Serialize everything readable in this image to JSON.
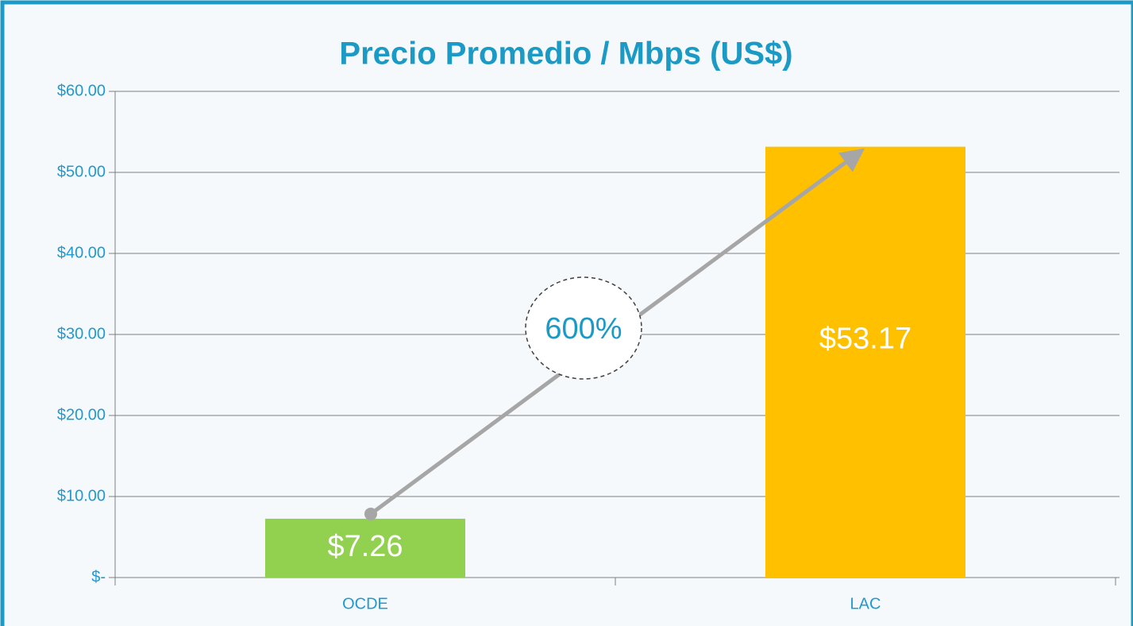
{
  "chart_data": {
    "type": "bar",
    "title": "Precio Promedio / Mbps (US$)",
    "categories": [
      "OCDE",
      "LAC"
    ],
    "values": [
      7.26,
      53.17
    ],
    "value_labels": [
      "$7.26",
      "$53.17"
    ],
    "colors": [
      "#92d050",
      "#ffc000"
    ],
    "ylim": [
      0,
      60
    ],
    "yticks": [
      {
        "value": 0,
        "label": "$-"
      },
      {
        "value": 10,
        "label": "$10.00"
      },
      {
        "value": 20,
        "label": "$20.00"
      },
      {
        "value": 30,
        "label": "$30.00"
      },
      {
        "value": 40,
        "label": "$40.00"
      },
      {
        "value": 50,
        "label": "$50.00"
      },
      {
        "value": 60,
        "label": "$60.00"
      }
    ],
    "grid": true,
    "annotation": "600%"
  }
}
